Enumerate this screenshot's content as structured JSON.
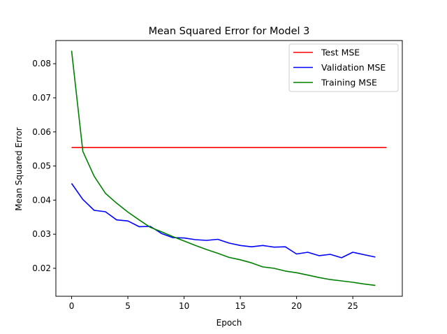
{
  "chart_data": {
    "type": "line",
    "title": "Mean Squared Error for Model 3",
    "xlabel": "Epoch",
    "ylabel": "Mean Squared Error",
    "xlim": [
      -1.4,
      29.4
    ],
    "ylim": [
      0.0118,
      0.0868
    ],
    "xticks": [
      0,
      5,
      10,
      15,
      20,
      25
    ],
    "yticks": [
      0.02,
      0.03,
      0.04,
      0.05,
      0.06,
      0.07,
      0.08
    ],
    "grid": false,
    "legend_position": "top-right",
    "series": [
      {
        "name": "Test MSE",
        "color": "#ff0000",
        "x": [
          0,
          28
        ],
        "y": [
          0.0554,
          0.0554
        ]
      },
      {
        "name": "Validation MSE",
        "color": "#0000ff",
        "x": [
          0,
          1,
          2,
          3,
          4,
          5,
          6,
          7,
          8,
          9,
          10,
          11,
          12,
          13,
          14,
          15,
          16,
          17,
          18,
          19,
          20,
          21,
          22,
          23,
          24,
          25,
          26,
          27
        ],
        "y": [
          0.0449,
          0.0402,
          0.037,
          0.0366,
          0.0342,
          0.0339,
          0.0322,
          0.0323,
          0.0302,
          0.029,
          0.0289,
          0.0284,
          0.0282,
          0.0285,
          0.0274,
          0.0267,
          0.0263,
          0.0267,
          0.0262,
          0.0263,
          0.0242,
          0.0247,
          0.0237,
          0.0241,
          0.0231,
          0.0247,
          0.024,
          0.0233
        ]
      },
      {
        "name": "Training MSE",
        "color": "#008000",
        "x": [
          0,
          1,
          2,
          3,
          4,
          5,
          6,
          7,
          8,
          9,
          10,
          11,
          12,
          13,
          14,
          15,
          16,
          17,
          18,
          19,
          20,
          21,
          22,
          23,
          24,
          25,
          26,
          27
        ],
        "y": [
          0.0838,
          0.0543,
          0.047,
          0.042,
          0.0391,
          0.0365,
          0.0342,
          0.032,
          0.0307,
          0.0293,
          0.028,
          0.0267,
          0.0255,
          0.0244,
          0.0232,
          0.0225,
          0.0216,
          0.0204,
          0.02,
          0.0192,
          0.0187,
          0.018,
          0.0173,
          0.0167,
          0.0163,
          0.0159,
          0.0154,
          0.015
        ]
      }
    ]
  }
}
